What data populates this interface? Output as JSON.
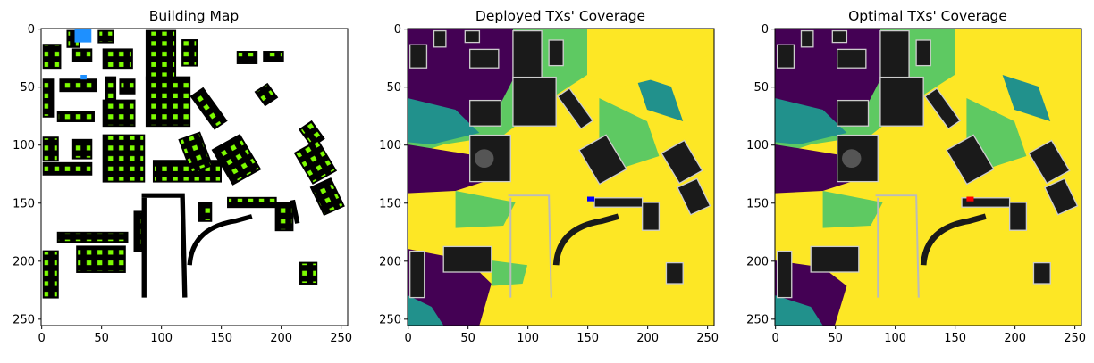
{
  "chart_data": [
    {
      "type": "heatmap",
      "title": "Building Map",
      "xlim": [
        0,
        255
      ],
      "ylim": [
        255,
        0
      ],
      "xticks": [
        0,
        50,
        100,
        150,
        200,
        250
      ],
      "yticks": [
        0,
        50,
        100,
        150,
        200,
        250
      ],
      "colors": {
        "background": "#ffffff",
        "building": "#000000",
        "candidate_points": "#7cfc00",
        "marker": "#1e90ff"
      }
    },
    {
      "type": "heatmap",
      "title": "Deployed TXs' Coverage",
      "xlim": [
        0,
        255
      ],
      "ylim": [
        255,
        0
      ],
      "xticks": [
        0,
        50,
        100,
        150,
        200,
        250
      ],
      "yticks": [
        0,
        50,
        100,
        150,
        200,
        250
      ],
      "transmitter": {
        "x": 153,
        "y": 147,
        "color": "#0000ff"
      },
      "colors": {
        "high": "#fde725",
        "mid": "#5ec962",
        "low": "#21918c",
        "none": "#440154",
        "building": "#1a1a1a"
      }
    },
    {
      "type": "heatmap",
      "title": "Optimal TXs' Coverage",
      "xlim": [
        0,
        255
      ],
      "ylim": [
        255,
        0
      ],
      "xticks": [
        0,
        50,
        100,
        150,
        200,
        250
      ],
      "yticks": [
        0,
        50,
        100,
        150,
        200,
        250
      ],
      "transmitter": {
        "x": 163,
        "y": 147,
        "color": "#ff0000"
      },
      "colors": {
        "high": "#fde725",
        "mid": "#5ec962",
        "low": "#21918c",
        "none": "#440154",
        "building": "#1a1a1a"
      }
    }
  ]
}
